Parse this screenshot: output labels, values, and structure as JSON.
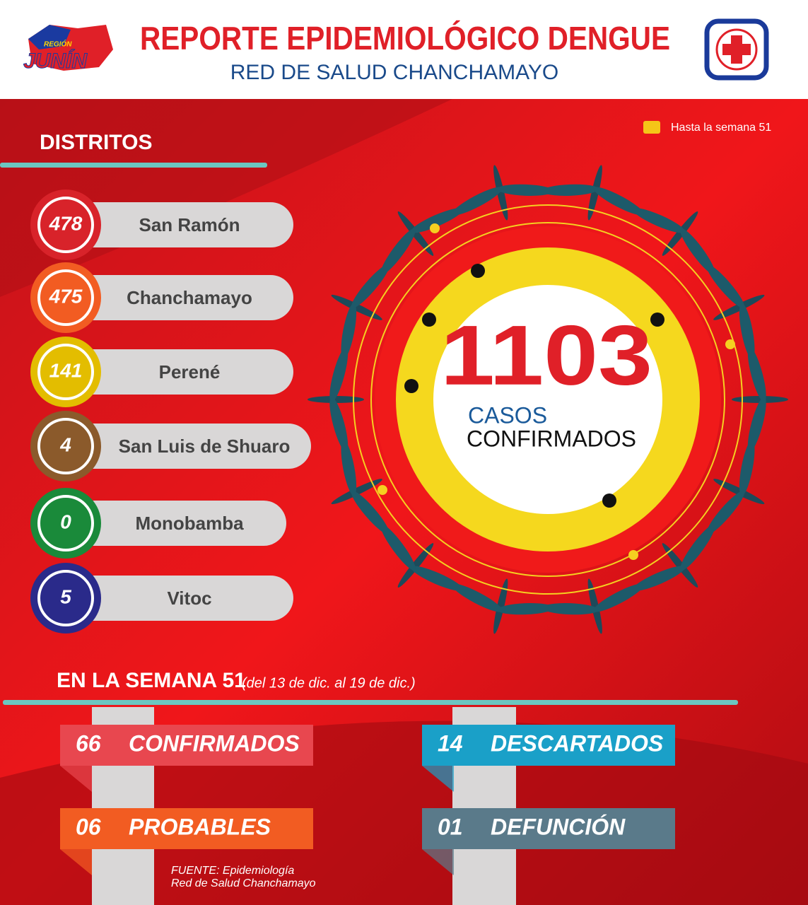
{
  "header": {
    "logo_small": "REGIÓN",
    "logo": "JUNÍN",
    "title": "REPORTE EPIDEMIOLÓGICO DENGUE",
    "subtitle": "RED DE SALUD CHANCHAMAYO"
  },
  "districts": {
    "heading": "DISTRITOS",
    "items": [
      {
        "count": "478",
        "name": "San Ramón",
        "color": "#d8232a"
      },
      {
        "count": "475",
        "name": "Chanchamayo",
        "color": "#f25c22"
      },
      {
        "count": "141",
        "name": "Perené",
        "color": "#e3bd00"
      },
      {
        "count": "4",
        "name": "San Luis de Shuaro",
        "color": "#8b5a2b"
      },
      {
        "count": "0",
        "name": "Monobamba",
        "color": "#1a8a3a"
      },
      {
        "count": "5",
        "name": "Vitoc",
        "color": "#2a2a8a"
      }
    ]
  },
  "week_note": "Hasta la semana 51",
  "total": {
    "value": "1103",
    "label": "CASOS",
    "label2": "CONFIRMADOS"
  },
  "week": {
    "heading": "EN LA SEMANA 51",
    "range": "(del 13 de dic. al 19 de dic.)",
    "stats": [
      {
        "value": "66",
        "label": "CONFIRMADOS",
        "color": "#e8474f"
      },
      {
        "value": "14",
        "label": "DESCARTADOS",
        "color": "#1aa0c8"
      },
      {
        "value": "06",
        "label": "PROBABLES",
        "color": "#f25c22"
      },
      {
        "value": "01",
        "label": "DEFUNCIÓN",
        "color": "#5a7a8a"
      }
    ]
  },
  "source": {
    "line1": "FUENTE: Epidemiología",
    "line2": "Red de Salud Chanchamayo"
  }
}
